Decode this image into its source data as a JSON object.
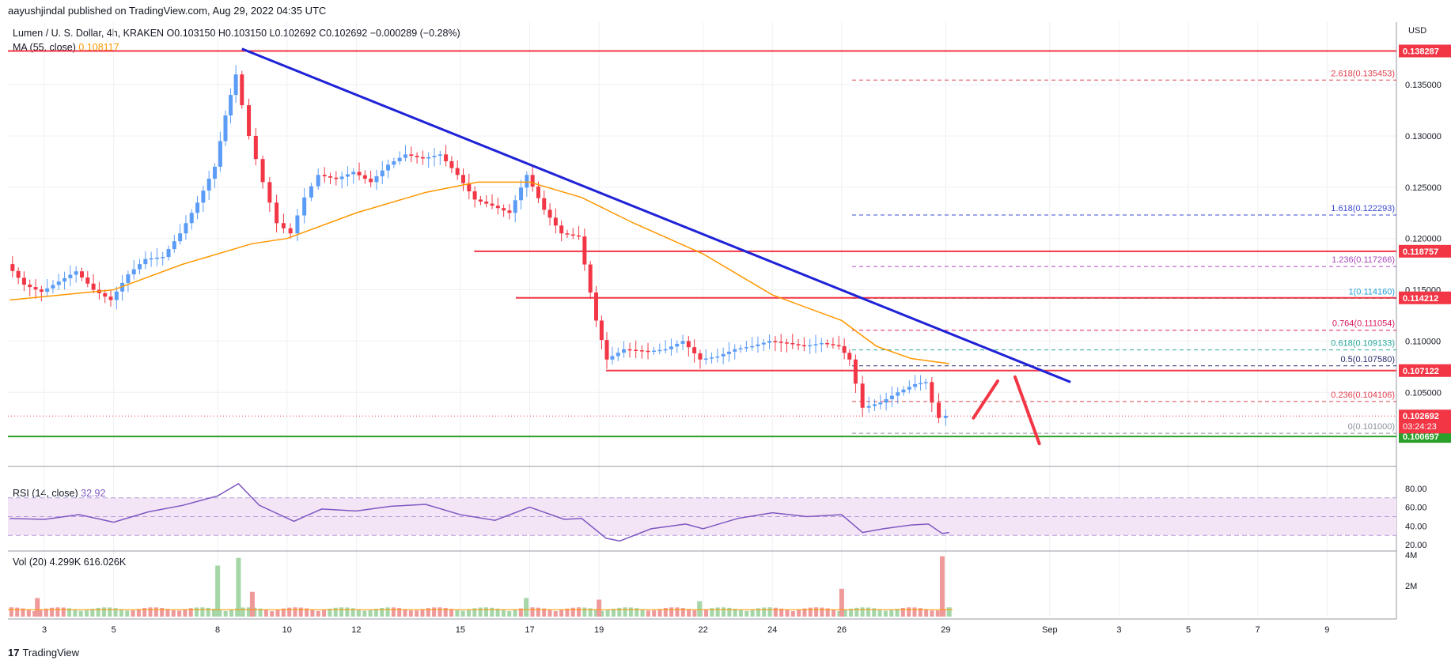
{
  "header": {
    "published_line": "aayushjindal published on TradingView.com, Aug 29, 2022 04:35 UTC",
    "symbol": "Lumen / U. S. Dollar, 4h, KRAKEN",
    "ohlc": "O0.103150 H0.103150 L0.102692 C0.102692 −0.000289 (−0.28%)",
    "ma_label": "MA (55, close)",
    "ma_value": "0.108117",
    "currency": "USD"
  },
  "rsi_panel": {
    "label": "RSI (14, close)",
    "value": "32.92"
  },
  "vol_panel": {
    "label": "Vol (20)",
    "value1": "4.299K",
    "value2": "616.026K"
  },
  "brand": {
    "logo": "17",
    "name": "TradingView"
  },
  "chart_data": {
    "type": "candlestick",
    "symbol": "Lumen / U. S. Dollar",
    "timeframe": "4h",
    "y_ticks": [
      0.135,
      0.13,
      0.125,
      0.12,
      0.115,
      0.11,
      0.105
    ],
    "y_tick_labels": [
      "0.135000",
      "0.130000",
      "0.125000",
      "0.120000",
      "0.115000",
      "0.110000",
      "0.105000"
    ],
    "ylim": [
      0.0987,
      0.1411
    ],
    "x_ticks": [
      {
        "label": "3",
        "day": 3
      },
      {
        "label": "5",
        "day": 5
      },
      {
        "label": "8",
        "day": 8
      },
      {
        "label": "10",
        "day": 10
      },
      {
        "label": "12",
        "day": 12
      },
      {
        "label": "15",
        "day": 15
      },
      {
        "label": "17",
        "day": 17
      },
      {
        "label": "19",
        "day": 19
      },
      {
        "label": "22",
        "day": 22
      },
      {
        "label": "24",
        "day": 24
      },
      {
        "label": "26",
        "day": 26
      },
      {
        "label": "29",
        "day": 29
      },
      {
        "label": "Sep",
        "day": 32
      },
      {
        "label": "3",
        "day": 34
      },
      {
        "label": "5",
        "day": 36
      },
      {
        "label": "7",
        "day": 38
      },
      {
        "label": "9",
        "day": 40
      }
    ],
    "xlim_days": [
      1.95,
      42.0
    ],
    "close_series": [
      {
        "day": 2.0,
        "close": 0.1175
      },
      {
        "day": 2.5,
        "close": 0.1155
      },
      {
        "day": 3.0,
        "close": 0.1148
      },
      {
        "day": 3.5,
        "close": 0.1158
      },
      {
        "day": 4.0,
        "close": 0.1168
      },
      {
        "day": 4.5,
        "close": 0.115
      },
      {
        "day": 5.0,
        "close": 0.114
      },
      {
        "day": 5.5,
        "close": 0.1165
      },
      {
        "day": 6.0,
        "close": 0.118
      },
      {
        "day": 6.5,
        "close": 0.1182
      },
      {
        "day": 7.0,
        "close": 0.1205
      },
      {
        "day": 7.5,
        "close": 0.1235
      },
      {
        "day": 8.0,
        "close": 0.127
      },
      {
        "day": 8.3,
        "close": 0.132
      },
      {
        "day": 8.6,
        "close": 0.136
      },
      {
        "day": 9.0,
        "close": 0.13
      },
      {
        "day": 9.4,
        "close": 0.1255
      },
      {
        "day": 9.8,
        "close": 0.1215
      },
      {
        "day": 10.2,
        "close": 0.1205
      },
      {
        "day": 10.6,
        "close": 0.124
      },
      {
        "day": 11.0,
        "close": 0.1262
      },
      {
        "day": 11.5,
        "close": 0.1258
      },
      {
        "day": 12.0,
        "close": 0.1265
      },
      {
        "day": 12.5,
        "close": 0.1255
      },
      {
        "day": 13.0,
        "close": 0.1272
      },
      {
        "day": 13.5,
        "close": 0.1282
      },
      {
        "day": 14.0,
        "close": 0.1278
      },
      {
        "day": 14.5,
        "close": 0.1282
      },
      {
        "day": 15.0,
        "close": 0.1262
      },
      {
        "day": 15.5,
        "close": 0.1238
      },
      {
        "day": 16.0,
        "close": 0.1232
      },
      {
        "day": 16.5,
        "close": 0.1225
      },
      {
        "day": 17.0,
        "close": 0.1262
      },
      {
        "day": 17.5,
        "close": 0.1228
      },
      {
        "day": 18.0,
        "close": 0.1205
      },
      {
        "day": 18.5,
        "close": 0.1202
      },
      {
        "day": 19.0,
        "close": 0.112
      },
      {
        "day": 19.3,
        "close": 0.1082
      },
      {
        "day": 19.8,
        "close": 0.1092
      },
      {
        "day": 20.5,
        "close": 0.109
      },
      {
        "day": 21.0,
        "close": 0.1092
      },
      {
        "day": 21.5,
        "close": 0.11
      },
      {
        "day": 22.0,
        "close": 0.1082
      },
      {
        "day": 22.5,
        "close": 0.1085
      },
      {
        "day": 23.0,
        "close": 0.1092
      },
      {
        "day": 23.5,
        "close": 0.1095
      },
      {
        "day": 24.0,
        "close": 0.11
      },
      {
        "day": 24.5,
        "close": 0.1098
      },
      {
        "day": 25.0,
        "close": 0.1095
      },
      {
        "day": 25.5,
        "close": 0.1098
      },
      {
        "day": 26.0,
        "close": 0.1095
      },
      {
        "day": 26.3,
        "close": 0.1082
      },
      {
        "day": 26.7,
        "close": 0.1035
      },
      {
        "day": 27.2,
        "close": 0.104
      },
      {
        "day": 27.7,
        "close": 0.105
      },
      {
        "day": 28.2,
        "close": 0.1058
      },
      {
        "day": 28.5,
        "close": 0.106
      },
      {
        "day": 28.7,
        "close": 0.104
      },
      {
        "day": 28.9,
        "close": 0.1025
      },
      {
        "day": 29.1,
        "close": 0.1027
      }
    ],
    "ma_series": [
      {
        "day": 2.0,
        "value": 0.114
      },
      {
        "day": 5.0,
        "value": 0.115
      },
      {
        "day": 7.0,
        "value": 0.1175
      },
      {
        "day": 9.0,
        "value": 0.1195
      },
      {
        "day": 10.0,
        "value": 0.12
      },
      {
        "day": 12.0,
        "value": 0.1225
      },
      {
        "day": 14.0,
        "value": 0.1245
      },
      {
        "day": 15.5,
        "value": 0.1255
      },
      {
        "day": 17.0,
        "value": 0.1255
      },
      {
        "day": 18.5,
        "value": 0.124
      },
      {
        "day": 20.0,
        "value": 0.1215
      },
      {
        "day": 22.0,
        "value": 0.1185
      },
      {
        "day": 24.0,
        "value": 0.1145
      },
      {
        "day": 26.0,
        "value": 0.112
      },
      {
        "day": 27.0,
        "value": 0.1095
      },
      {
        "day": 28.0,
        "value": 0.1083
      },
      {
        "day": 29.1,
        "value": 0.1078
      }
    ],
    "trendline": {
      "start": {
        "day": 8.7,
        "price": 0.1385
      },
      "end": {
        "day": 32.6,
        "price": 0.106
      },
      "color": "#1f22d6"
    },
    "horizontal_lines": [
      {
        "price": 0.138287,
        "label": "0.138287",
        "start_day": 1.95,
        "color": "#f23645"
      },
      {
        "price": 0.118757,
        "label": "0.118757",
        "start_day": 15.4,
        "color": "#f23645"
      },
      {
        "price": 0.114212,
        "label": "0.114212",
        "start_day": 16.6,
        "color": "#f23645"
      },
      {
        "price": 0.107122,
        "label": "0.107122",
        "start_day": 19.2,
        "color": "#f23645"
      },
      {
        "price": 0.100697,
        "label": "0.100697",
        "start_day": 1.95,
        "color": "#2aa02a"
      }
    ],
    "last_price": {
      "price": 0.102692,
      "label": "0.102692",
      "countdown": "03:24:23"
    },
    "fib_levels": [
      {
        "ratio": "2.618",
        "price": 0.135453,
        "label": "2.618(0.135453)",
        "color": "#e0414f"
      },
      {
        "ratio": "1.618",
        "price": 0.122293,
        "label": "1.618(0.122293)",
        "color": "#3d4bd0"
      },
      {
        "ratio": "1.236",
        "price": 0.117266,
        "label": "1.236(0.117266)",
        "color": "#ab47bc"
      },
      {
        "ratio": "1",
        "price": 0.11416,
        "label": "1(0.114160)",
        "color": "#26a0d8"
      },
      {
        "ratio": "0.764",
        "price": 0.111054,
        "label": "0.764(0.111054)",
        "color": "#d81b60"
      },
      {
        "ratio": "0.618",
        "price": 0.109133,
        "label": "0.618(0.109133)",
        "color": "#26a69a"
      },
      {
        "ratio": "0.5",
        "price": 0.10758,
        "label": "0.5(0.107580)",
        "color": "#2a3370"
      },
      {
        "ratio": "0.236",
        "price": 0.104106,
        "label": "0.236(0.104106)",
        "color": "#e0414f"
      },
      {
        "ratio": "0",
        "price": 0.101,
        "label": "0(0.101000)",
        "color": "#8a8f99"
      }
    ],
    "fib_start_day": 26.3,
    "fib_end_day": 42.0,
    "projection_arrows": [
      {
        "from": {
          "day": 29.8,
          "price": 0.1025
        },
        "to": {
          "day": 30.5,
          "price": 0.1061
        }
      },
      {
        "from": {
          "day": 31.0,
          "price": 0.1065
        },
        "to": {
          "day": 31.7,
          "price": 0.1
        }
      }
    ],
    "rsi": {
      "ylim": [
        15,
        95
      ],
      "ticks": [
        80,
        60,
        40,
        20
      ],
      "tick_labels": [
        "80.00",
        "60.00",
        "40.00",
        "20.00"
      ],
      "band": [
        30,
        70
      ],
      "series": [
        {
          "day": 2.0,
          "value": 48
        },
        {
          "day": 3.0,
          "value": 47
        },
        {
          "day": 4.0,
          "value": 52
        },
        {
          "day": 5.0,
          "value": 44
        },
        {
          "day": 6.0,
          "value": 55
        },
        {
          "day": 7.0,
          "value": 62
        },
        {
          "day": 8.0,
          "value": 72
        },
        {
          "day": 8.6,
          "value": 85
        },
        {
          "day": 9.2,
          "value": 62
        },
        {
          "day": 10.2,
          "value": 45
        },
        {
          "day": 11.0,
          "value": 58
        },
        {
          "day": 12.0,
          "value": 56
        },
        {
          "day": 13.0,
          "value": 61
        },
        {
          "day": 14.0,
          "value": 63
        },
        {
          "day": 15.0,
          "value": 52
        },
        {
          "day": 16.0,
          "value": 46
        },
        {
          "day": 17.0,
          "value": 60
        },
        {
          "day": 18.0,
          "value": 47
        },
        {
          "day": 18.5,
          "value": 48
        },
        {
          "day": 19.2,
          "value": 27
        },
        {
          "day": 19.6,
          "value": 24
        },
        {
          "day": 20.5,
          "value": 37
        },
        {
          "day": 21.5,
          "value": 42
        },
        {
          "day": 22.0,
          "value": 37
        },
        {
          "day": 23.0,
          "value": 48
        },
        {
          "day": 24.0,
          "value": 54
        },
        {
          "day": 25.0,
          "value": 50
        },
        {
          "day": 26.0,
          "value": 52
        },
        {
          "day": 26.6,
          "value": 33
        },
        {
          "day": 27.2,
          "value": 37
        },
        {
          "day": 28.0,
          "value": 41
        },
        {
          "day": 28.5,
          "value": 42
        },
        {
          "day": 28.9,
          "value": 32
        },
        {
          "day": 29.1,
          "value": 33
        }
      ]
    },
    "volume": {
      "ylim": [
        0,
        4.5
      ],
      "ticks": [
        4,
        2
      ],
      "tick_labels": [
        "4M",
        "2M"
      ],
      "unit": "M",
      "bars": [
        {
          "day": 2.8,
          "value": 1.2,
          "up": false
        },
        {
          "day": 8.0,
          "value": 3.3,
          "up": true
        },
        {
          "day": 8.6,
          "value": 3.8,
          "up": true
        },
        {
          "day": 9.0,
          "value": 1.6,
          "up": false
        },
        {
          "day": 16.9,
          "value": 1.2,
          "up": true
        },
        {
          "day": 19.0,
          "value": 1.1,
          "up": false
        },
        {
          "day": 21.9,
          "value": 1.0,
          "up": true
        },
        {
          "day": 26.0,
          "value": 1.8,
          "up": false
        },
        {
          "day": 28.9,
          "value": 3.9,
          "up": false
        },
        {
          "day": 29.1,
          "value": 0.6,
          "up": true
        }
      ],
      "ma_level": 0.45
    }
  }
}
